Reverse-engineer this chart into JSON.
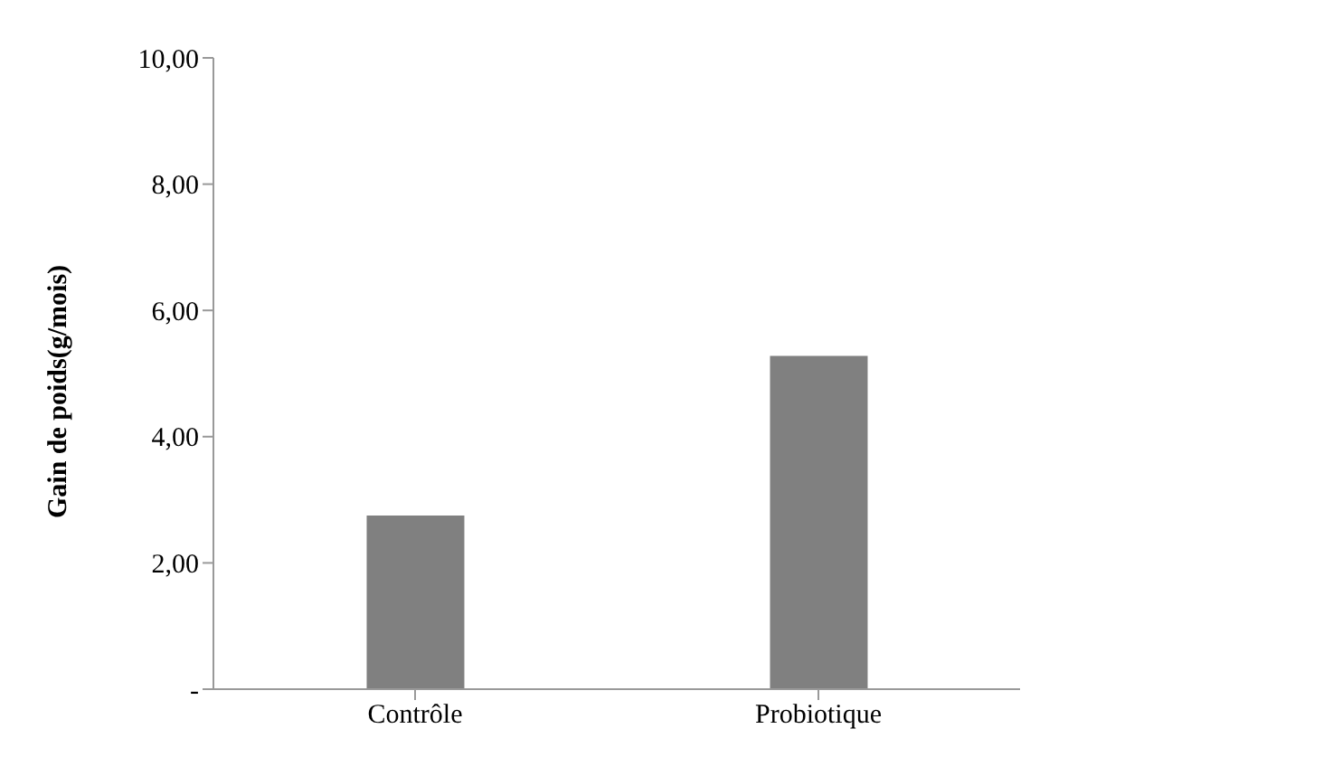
{
  "chart_data": {
    "type": "bar",
    "ylabel": "Gain de poids(g/mois)",
    "categories": [
      "Contrôle",
      "Probiotique"
    ],
    "values": [
      2.75,
      5.28
    ],
    "color": "#808080",
    "ylim": [
      0,
      10
    ],
    "yticks": [
      {
        "value": 0,
        "label": "-"
      },
      {
        "value": 2,
        "label": "2,00"
      },
      {
        "value": 4,
        "label": "4,00"
      },
      {
        "value": 6,
        "label": "6,00"
      },
      {
        "value": 8,
        "label": "8,00"
      },
      {
        "value": 10,
        "label": "10,00"
      }
    ],
    "grid": false,
    "legend": false
  }
}
